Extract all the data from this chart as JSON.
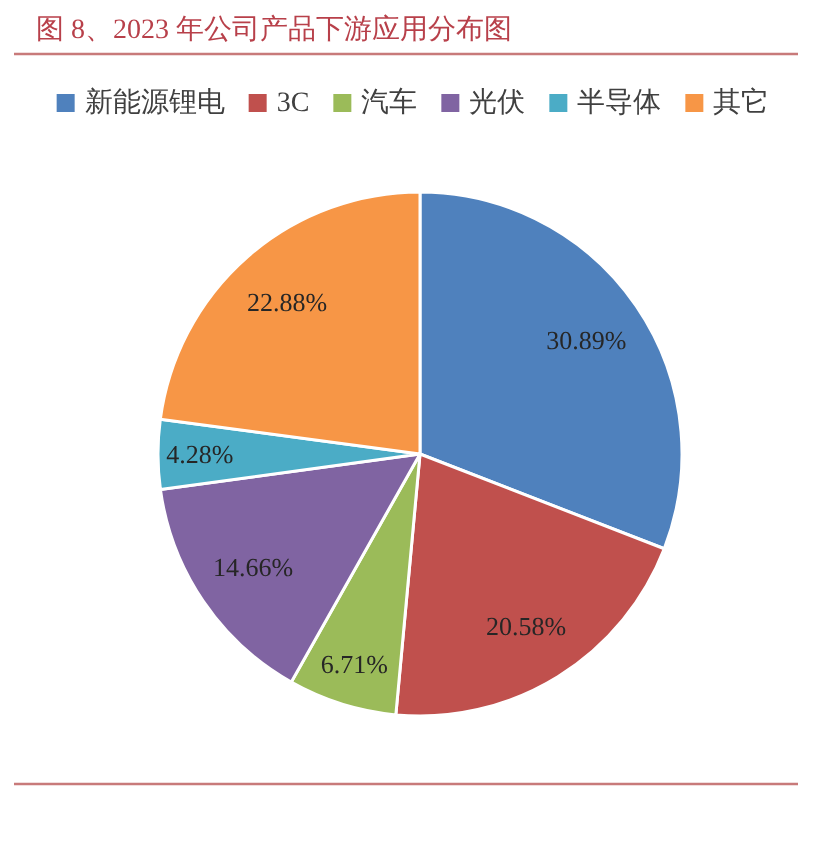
{
  "chart_data": {
    "type": "pie",
    "title": "图 8、2023 年公司产品下游应用分布图",
    "categories": [
      "新能源锂电",
      "3C",
      "汽车",
      "光伏",
      "半导体",
      "其它"
    ],
    "values": [
      30.89,
      20.58,
      6.71,
      14.66,
      4.28,
      22.88
    ],
    "colors": [
      "#4f81bd",
      "#c0504d",
      "#9bbb59",
      "#8064a2",
      "#4bacc6",
      "#f79646"
    ],
    "value_labels": [
      "30.89%",
      "20.58%",
      "6.71%",
      "14.66%",
      "4.28%",
      "22.88%"
    ],
    "legend": "top"
  }
}
